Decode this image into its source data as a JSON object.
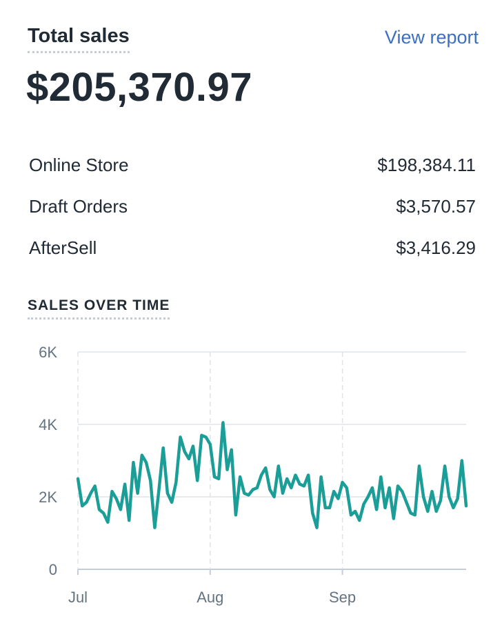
{
  "header": {
    "title": "Total sales",
    "view_report": "View report"
  },
  "total": "$205,370.97",
  "breakdown": [
    {
      "label": "Online Store",
      "value": "$198,384.11"
    },
    {
      "label": "Draft Orders",
      "value": "$3,570.57"
    },
    {
      "label": "AfterSell",
      "value": "$3,416.29"
    }
  ],
  "colors": {
    "line": "#1b9e98",
    "link": "#3a6fc4",
    "grid": "#dfe3e8",
    "axis_text": "#637381"
  },
  "chart_data": {
    "type": "line",
    "title": "SALES OVER TIME",
    "ylim": [
      0,
      6000
    ],
    "y_ticks": [
      0,
      2000,
      4000,
      6000
    ],
    "y_tick_labels": [
      "0",
      "2K",
      "4K",
      "6K"
    ],
    "x_tick_labels": [
      "Jul",
      "Aug",
      "Sep"
    ],
    "x_tick_days": [
      0,
      31,
      62
    ],
    "grid": true,
    "legend": "none",
    "series": [
      {
        "values": [
          2500,
          1750,
          1850,
          2100,
          2300,
          1650,
          1550,
          1300,
          2150,
          1950,
          1650,
          2350,
          1350,
          2950,
          2100,
          3150,
          2950,
          2450,
          1150,
          2200,
          3350,
          2100,
          1850,
          2400,
          3650,
          3250,
          3050,
          3400,
          2450,
          3700,
          3650,
          3450,
          2550,
          2500,
          4050,
          2750,
          3300,
          1500,
          2550,
          2100,
          2050,
          2200,
          2250,
          2600,
          2800,
          2200,
          2000,
          2850,
          2100,
          2500,
          2250,
          2600,
          2350,
          2300,
          2600,
          1550,
          1150,
          2550,
          1700,
          1700,
          2150,
          1950,
          2400,
          2250,
          1500,
          1600,
          1350,
          1800,
          2000,
          2250,
          1650,
          2550,
          1700,
          2250,
          1400,
          2300,
          2150,
          1850,
          1550,
          1500,
          2850,
          2000,
          1600,
          2150,
          1600,
          1900,
          2850,
          2000,
          1700,
          1950,
          3000,
          1750
        ]
      }
    ]
  }
}
